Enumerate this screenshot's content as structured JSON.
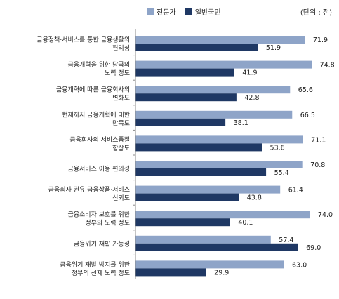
{
  "chart_data": {
    "type": "bar",
    "orientation": "horizontal",
    "unit_label": "(단위 : 점)",
    "grid": false,
    "legend_position": "top",
    "categories": [
      [
        "금융정책·서비스를 통한 금융생활의",
        "편리성"
      ],
      [
        "금융개혁을 위한 당국의",
        "노력 정도"
      ],
      [
        "금융개혁에 따른 금융회사의",
        "변화도"
      ],
      [
        "현재까지 금융개혁에 대한",
        "만족도"
      ],
      [
        "금융회사의 서비스품질",
        "향상도"
      ],
      [
        "금융서비스 이용 편의성"
      ],
      [
        "금융회사 권유 금융상품·서비스",
        "신뢰도"
      ],
      [
        "금융소비자 보호를 위한",
        "정부의 노력 정도"
      ],
      [
        "금융위기 재발 가능성"
      ],
      [
        "금융위기 재발 방지를 위한",
        "정부의 선제 노력 정도"
      ]
    ],
    "series": [
      {
        "name": "전문가",
        "color": "#8ea4c8",
        "values": [
          71.9,
          74.8,
          65.6,
          66.5,
          71.1,
          70.8,
          61.4,
          74.0,
          57.4,
          63.0
        ]
      },
      {
        "name": "일반국민",
        "color": "#1f3864",
        "values": [
          51.9,
          41.9,
          42.8,
          38.1,
          53.6,
          55.4,
          43.8,
          40.1,
          69.0,
          29.9
        ]
      }
    ],
    "xlim": [
      0,
      80
    ]
  }
}
